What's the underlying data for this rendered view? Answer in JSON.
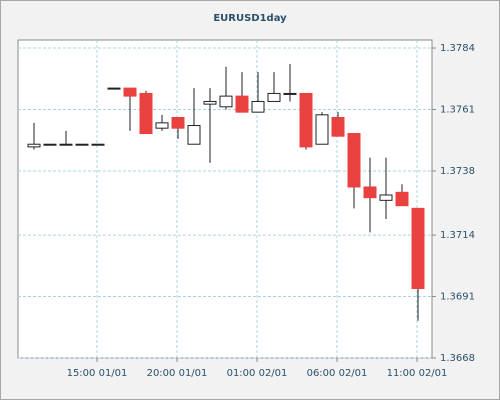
{
  "chart_data": {
    "type": "candlestick",
    "title": "EURUSD1day",
    "categories": [
      null,
      null,
      null,
      null,
      "15:00 01/01",
      null,
      null,
      null,
      null,
      "20:00 01/01",
      null,
      null,
      null,
      null,
      "01:00 02/01",
      null,
      null,
      null,
      null,
      "06:00 02/01",
      null,
      null,
      null,
      null,
      "11:00 02/01"
    ],
    "open": [
      1.3747,
      1.3748,
      1.3748,
      1.3748,
      1.3748,
      1.3769,
      1.3769,
      1.3767,
      1.3754,
      1.3758,
      1.3748,
      1.3763,
      1.3762,
      1.3766,
      1.376,
      1.3764,
      1.3767,
      1.3767,
      1.3748,
      1.3758,
      1.3752,
      1.3732,
      1.3727,
      1.373,
      1.3724
    ],
    "high": [
      1.3756,
      1.3748,
      1.3753,
      1.3748,
      1.3748,
      1.3769,
      1.3769,
      1.3768,
      1.3759,
      1.3758,
      1.3769,
      1.3769,
      1.3777,
      1.3775,
      1.3775,
      1.3775,
      1.3778,
      1.3767,
      1.376,
      1.376,
      1.3752,
      1.3743,
      1.3743,
      1.3733,
      1.3724
    ],
    "low": [
      1.3746,
      1.3748,
      1.3748,
      1.3748,
      1.3748,
      1.3769,
      1.3753,
      1.3752,
      1.3753,
      1.375,
      1.3748,
      1.3741,
      1.3761,
      1.376,
      1.376,
      1.3764,
      1.3764,
      1.3746,
      1.3748,
      1.3751,
      1.3724,
      1.3715,
      1.372,
      1.3725,
      1.3682
    ],
    "close": [
      1.3748,
      1.3748,
      1.3748,
      1.3748,
      1.3748,
      1.3769,
      1.3766,
      1.3752,
      1.3756,
      1.3754,
      1.3755,
      1.3764,
      1.3766,
      1.376,
      1.3764,
      1.3767,
      1.3767,
      1.3747,
      1.3759,
      1.3751,
      1.3732,
      1.3728,
      1.3729,
      1.3725,
      1.3694
    ],
    "up_color": "#ffffff",
    "down_color": "#e8413f",
    "ylim": [
      1.3668,
      1.3787
    ],
    "yticks": [
      1.3668,
      1.3691,
      1.3714,
      1.3738,
      1.3761,
      1.3784
    ],
    "grid": true
  }
}
